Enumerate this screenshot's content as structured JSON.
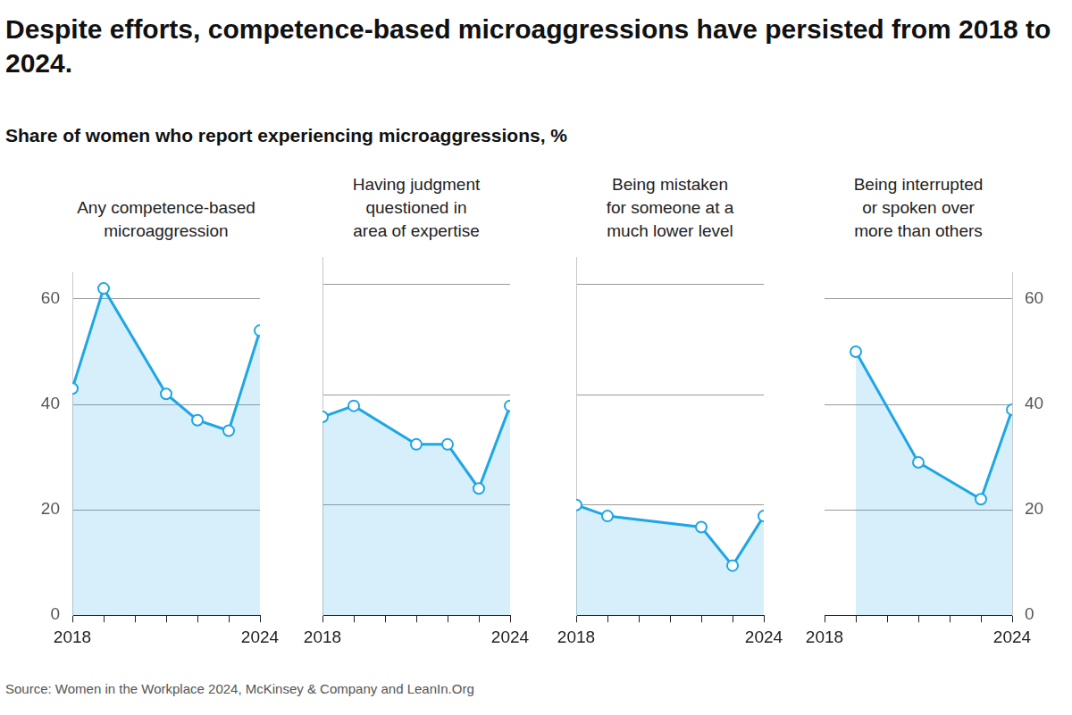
{
  "title": "Despite efforts, competence-based microaggressions have persisted from 2018 to 2024.",
  "subtitle": "Share of women who report experiencing microaggressions, %",
  "source": "Source: Women in the Workplace 2024, McKinsey & Company and LeanIn.Org",
  "chart_data": [
    {
      "type": "line",
      "title": [
        "Any competence-based",
        "microaggression"
      ],
      "x": [
        2018,
        2019,
        2021,
        2022,
        2023,
        2024
      ],
      "values": [
        43,
        62,
        42,
        37,
        35,
        54
      ],
      "color": "#1fa6e6",
      "marker": "circle",
      "xlim": [
        2018,
        2024
      ],
      "xticks": [
        2018,
        2024
      ],
      "ylim": [
        0,
        65
      ],
      "yticks": [
        0,
        20,
        40,
        60
      ],
      "grid": true
    },
    {
      "type": "line",
      "title": [
        "Having judgment",
        "questioned in",
        "area of expertise"
      ],
      "x": [
        2018,
        2019,
        2021,
        2022,
        2023,
        2024
      ],
      "values": [
        36,
        38,
        31,
        31,
        23,
        38
      ],
      "color": "#1fa6e6",
      "marker": "circle",
      "xlim": [
        2018,
        2024
      ],
      "xticks": [
        2018,
        2024
      ],
      "ylim": [
        0,
        65
      ],
      "yticks": [
        0,
        20,
        40,
        60
      ],
      "grid": true,
      "tick_labels": "x"
    },
    {
      "type": "line",
      "title": [
        "Being mistaken",
        "for someone at a",
        "much lower level"
      ],
      "x": [
        2018,
        2019,
        2022,
        2023,
        2024
      ],
      "values": [
        20,
        18,
        16,
        9,
        18
      ],
      "color": "#1fa6e6",
      "marker": "circle",
      "xlim": [
        2018,
        2024
      ],
      "xticks": [
        2018,
        2024
      ],
      "ylim": [
        0,
        65
      ],
      "yticks": [
        0,
        20,
        40,
        60
      ],
      "grid": true,
      "tick_labels": "x"
    },
    {
      "type": "line",
      "title": [
        "Being interrupted",
        "or spoken over",
        "more than others"
      ],
      "x": [
        2019,
        2021,
        2023,
        2024
      ],
      "values": [
        50,
        29,
        22,
        39
      ],
      "color": "#1fa6e6",
      "marker": "circle",
      "xlim": [
        2018,
        2024
      ],
      "xticks": [
        2018,
        2024
      ],
      "ylim": [
        0,
        65
      ],
      "yticks": [
        0,
        20,
        40,
        60
      ],
      "grid": true
    }
  ]
}
